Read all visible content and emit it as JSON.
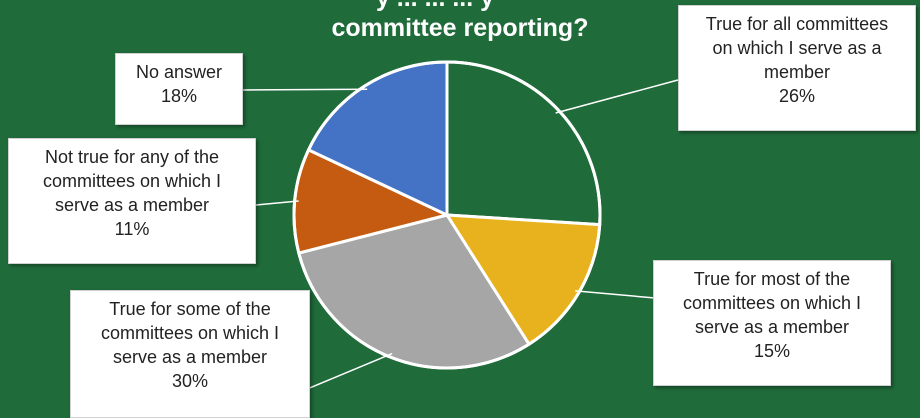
{
  "chart_data": {
    "type": "pie",
    "title_lines": [
      "y ... ... ... y",
      "committee reporting?"
    ],
    "slices": [
      {
        "label_lines": [
          "True for all committees",
          "on which I serve as a",
          "member"
        ],
        "percent_label": "26%",
        "value": 26,
        "color": "#1f6b3a"
      },
      {
        "label_lines": [
          "True for most of the",
          "committees on which I",
          "serve as a member"
        ],
        "percent_label": "15%",
        "value": 15,
        "color": "#e8b21e"
      },
      {
        "label_lines": [
          "True for some of the",
          "committees on which I",
          "serve as a member"
        ],
        "percent_label": "30%",
        "value": 30,
        "color": "#a6a6a6"
      },
      {
        "label_lines": [
          "Not true for any of the",
          "committees on which I",
          "serve as a member"
        ],
        "percent_label": "11%",
        "value": 11,
        "color": "#c55a11"
      },
      {
        "label_lines": [
          "No answer"
        ],
        "percent_label": "18%",
        "value": 18,
        "color": "#4472c4"
      }
    ],
    "legend": "none"
  }
}
